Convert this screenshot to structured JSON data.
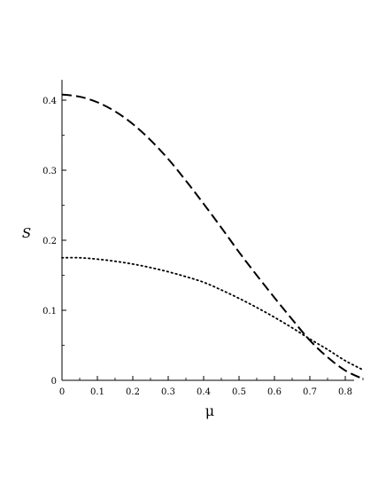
{
  "chart_data": {
    "type": "line",
    "title": "",
    "xlabel": "μ",
    "ylabel": "S",
    "xlim": [
      0,
      0.85
    ],
    "ylim": [
      0,
      0.43
    ],
    "xticks": [
      "0",
      "0.1",
      "0.2",
      "0.3",
      "0.4",
      "0.5",
      "0.6",
      "0.7",
      "0.8"
    ],
    "yticks": [
      "0",
      "0.1",
      "0.2",
      "0.3",
      "0.4"
    ],
    "grid": false,
    "legend": "none",
    "series": [
      {
        "style": "dashed",
        "color": "#000000",
        "x": [
          0,
          0.05,
          0.1,
          0.15,
          0.2,
          0.25,
          0.3,
          0.35,
          0.4,
          0.45,
          0.5,
          0.55,
          0.6,
          0.65,
          0.7,
          0.75,
          0.8,
          0.85
        ],
        "y": [
          0.408,
          0.405,
          0.397,
          0.384,
          0.366,
          0.343,
          0.316,
          0.285,
          0.252,
          0.218,
          0.183,
          0.15,
          0.118,
          0.087,
          0.057,
          0.033,
          0.014,
          0.002
        ]
      },
      {
        "style": "dotted",
        "color": "#000000",
        "x": [
          0,
          0.05,
          0.1,
          0.15,
          0.2,
          0.25,
          0.3,
          0.35,
          0.4,
          0.45,
          0.5,
          0.55,
          0.6,
          0.65,
          0.7,
          0.75,
          0.8,
          0.85
        ],
        "y": [
          0.175,
          0.175,
          0.173,
          0.17,
          0.166,
          0.161,
          0.155,
          0.148,
          0.14,
          0.129,
          0.117,
          0.104,
          0.09,
          0.075,
          0.059,
          0.044,
          0.028,
          0.015
        ]
      }
    ]
  }
}
